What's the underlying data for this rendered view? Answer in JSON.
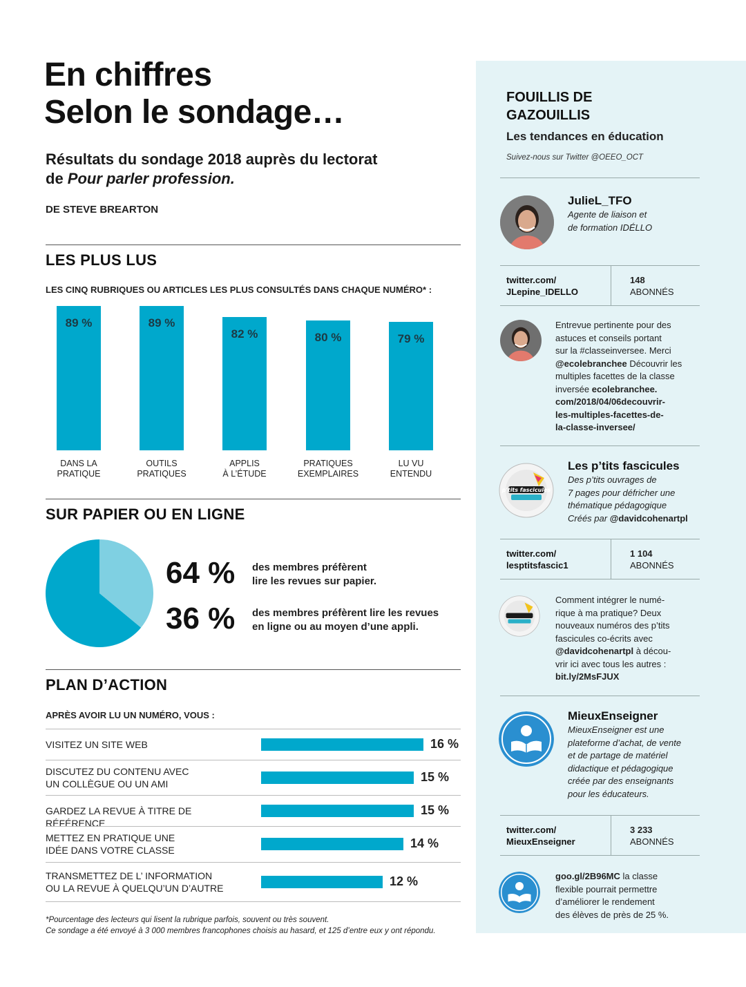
{
  "header": {
    "title_line1": "En chiffres",
    "title_line2": "Selon le sondage…",
    "subtitle_line1": "Résultats du sondage 2018 auprès du lectorat",
    "subtitle_prefix": "de ",
    "subtitle_italic": "Pour parler profession.",
    "byline": "DE STEVE BREARTON"
  },
  "colors": {
    "accent": "#00a8cc",
    "pie_light": "#7fd0e2",
    "sidebar_bg": "#e4f3f6"
  },
  "most_read": {
    "title": "LES PLUS LUS",
    "subtitle": "LES CINQ RUBRIQUES OU ARTICLES LES PLUS CONSULTÉS DANS CHAQUE NUMÉRO* :",
    "value_labels": [
      "89 %",
      "89 %",
      "82 %",
      "80 %",
      "79 %"
    ],
    "categories": [
      [
        "DANS LA",
        "PRATIQUE"
      ],
      [
        "OUTILS",
        "PRATIQUES"
      ],
      [
        "APPLIS",
        "À L’ÉTUDE"
      ],
      [
        "PRATIQUES",
        "EXEMPLAIRES"
      ],
      [
        "LU VU",
        "ENTENDU"
      ]
    ]
  },
  "paper_online": {
    "title": "SUR PAPIER OU EN LIGNE",
    "big1": "64 %",
    "text1_line1": "des membres préfèrent",
    "text1_line2": "lire les revues sur papier.",
    "big2": "36 %",
    "text2_line1": "des membres préfèrent lire les revues",
    "text2_line2": "en ligne ou au moyen d’une appli."
  },
  "action_plan": {
    "title": "PLAN D’ACTION",
    "subtitle": "APRÈS AVOIR LU UN NUMÉRO, VOUS :",
    "rows": [
      {
        "label1": "VISITEZ UN SITE WEB",
        "label2": "",
        "value_label": "16 %"
      },
      {
        "label1": "DISCUTEZ DU CONTENU AVEC",
        "label2": "UN COLLÈGUE OU UN AMI",
        "value_label": "15 %"
      },
      {
        "label1": "GARDEZ LA REVUE À TITRE DE RÉFÉRENCE",
        "label2": "",
        "value_label": "15 %"
      },
      {
        "label1": "METTEZ EN PRATIQUE UNE",
        "label2": "IDÉE DANS VOTRE CLASSE",
        "value_label": "14 %"
      },
      {
        "label1": "TRANSMETTEZ DE L’ INFORMATION",
        "label2": "OU LA REVUE À QUELQU’UN D’AUTRE",
        "value_label": "12 %"
      }
    ]
  },
  "footnote": {
    "line1": "*Pourcentage des lecteurs qui lisent la rubrique parfois, souvent ou très souvent.",
    "line2": "Ce sondage a été envoyé à 3 000 membres francophones choisis au hasard, et 125 d’entre eux y ont répondu."
  },
  "sidebar": {
    "title_line1": "FOUILLIS DE",
    "title_line2": "GAZOUILLIS",
    "subtitle": "Les tendances en éducation",
    "follow": "Suivez-nous sur Twitter @OEEO_OCT",
    "accounts": [
      {
        "handle": "JulieL_TFO",
        "desc_lines": [
          "Agente de liaison et",
          "de formation IDÉLLO"
        ],
        "link_line1": "twitter.com/",
        "link_line2": "JLepine_IDELLO",
        "followers": "148",
        "followers_label": "ABONNÉS",
        "tweet": {
          "l1": "Entrevue pertinente pour des",
          "l2": "astuces et conseils portant",
          "l3": "sur la #classeinversee. Merci",
          "l4_bold": "@ecolebranchee",
          "l4_rest": " Découvrir les",
          "l5": "multiples facettes de la classe",
          "l6_plain": "inversée ",
          "l6_bold": "ecolebranchee.",
          "l7": "com/2018/04/06decouvrir-",
          "l8": "les-multiples-facettes-de-",
          "l9": "la-classe-inversee/"
        }
      },
      {
        "handle": "Les p’tits fascicules",
        "desc_lines": [
          "Des p’tits ouvrages de",
          "7 pages pour défricher une",
          "thématique pédagogique"
        ],
        "desc_last_plain": "Créés par ",
        "desc_last_bold": "@davidcohenartpl",
        "link_line1": "twitter.com/",
        "link_line2": "lesptitsfascic1",
        "followers": "1 104",
        "followers_label": "ABONNÉS",
        "tweet": {
          "l1": "Comment intégrer le numé-",
          "l2": "rique à ma pratique? Deux",
          "l3": "nouveaux numéros des p’tits",
          "l4": "fascicules co-écrits avec",
          "l5_bold": "@davidcohenartpl",
          "l5_rest": " à décou-",
          "l6": "vrir ici avec tous les autres :",
          "l7_bold": "bit.ly/2MsFJUX"
        }
      },
      {
        "handle": "MieuxEnseigner",
        "desc_lines": [
          "MieuxEnseigner est une",
          "plateforme d’achat, de vente",
          "et de partage de matériel",
          "didactique et pédagogique",
          "créée par des enseignants",
          "pour les éducateurs."
        ],
        "link_line1": "twitter.com/",
        "link_line2": "MieuxEnseigner",
        "followers": "3 233",
        "followers_label": "ABONNÉS",
        "tweet": {
          "l1_bold": "goo.gl/2B96MC",
          "l1_rest": " la classe",
          "l2": "flexible pourrait permettre",
          "l3": "d’améliorer le rendement",
          "l4": "des élèves de près de 25 %."
        }
      }
    ],
    "fascicule_logo_text": "p'tits fascicules"
  },
  "chart_data": [
    {
      "type": "bar",
      "title": "LES PLUS LUS",
      "categories": [
        "DANS LA PRATIQUE",
        "OUTILS PRATIQUES",
        "APPLIS À L’ÉTUDE",
        "PRATIQUES EXEMPLAIRES",
        "LU VU ENTENDU"
      ],
      "values": [
        89,
        89,
        82,
        80,
        79
      ],
      "unit": "%"
    },
    {
      "type": "pie",
      "title": "SUR PAPIER OU EN LIGNE",
      "labels": [
        "des membres préfèrent lire les revues sur papier.",
        "des membres préfèrent lire les revues en ligne ou au moyen d’une appli."
      ],
      "values": [
        64,
        36
      ],
      "colors": [
        "#00a8cc",
        "#7fd0e2"
      ]
    },
    {
      "type": "bar",
      "orientation": "horizontal",
      "title": "PLAN D’ACTION",
      "categories": [
        "VISITEZ UN SITE WEB",
        "DISCUTEZ DU CONTENU AVEC UN COLLÈGUE OU UN AMI",
        "GARDEZ LA REVUE À TITRE DE RÉFÉRENCE",
        "METTEZ EN PRATIQUE UNE IDÉE DANS VOTRE CLASSE",
        "TRANSMETTEZ DE L’ INFORMATION OU LA REVUE À QUELQU’UN D’AUTRE"
      ],
      "values": [
        16,
        15,
        15,
        14,
        12
      ],
      "unit": "%"
    }
  ]
}
